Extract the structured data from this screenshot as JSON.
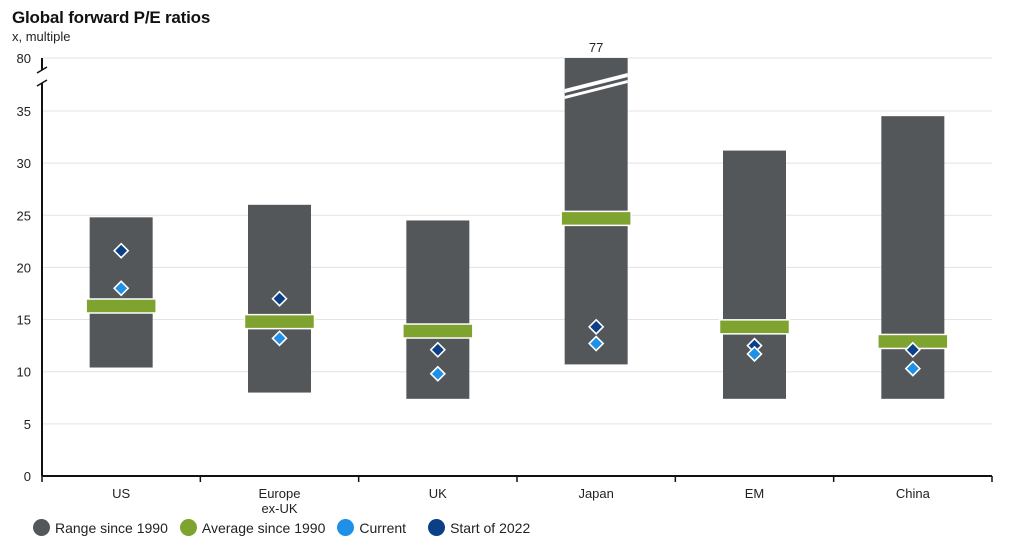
{
  "chart_data": {
    "type": "range-bar",
    "title": "Global forward P/E ratios",
    "subtitle": "x, multiple",
    "xlabel": "",
    "ylabel": "x, multiple",
    "ylim": [
      0,
      35
    ],
    "axis_break": {
      "from": 35,
      "to": 80,
      "top_tick": 80
    },
    "yticks": [
      0,
      5,
      10,
      15,
      20,
      25,
      30,
      35,
      80
    ],
    "grid": true,
    "legend_position": "bottom-left",
    "categories": [
      "US",
      "Europe\nex-UK",
      "UK",
      "Japan",
      "EM",
      "China"
    ],
    "category_labels": [
      [
        "US"
      ],
      [
        "Europe",
        "ex-UK"
      ],
      [
        "UK"
      ],
      [
        "Japan"
      ],
      [
        "EM"
      ],
      [
        "China"
      ]
    ],
    "series": [
      {
        "name": "Range since 1990",
        "color": "#54575a",
        "low": [
          10.4,
          8.0,
          7.4,
          10.7,
          7.4,
          7.4
        ],
        "high": [
          24.8,
          26.0,
          24.5,
          77,
          31.2,
          34.5
        ]
      },
      {
        "name": "Average since 1990",
        "color": "#7ea32e",
        "values": [
          16.3,
          14.8,
          13.9,
          24.7,
          14.3,
          12.9
        ]
      },
      {
        "name": "Current",
        "color": "#1e90e8",
        "values": [
          18.0,
          13.2,
          9.8,
          12.7,
          11.7,
          10.3
        ]
      },
      {
        "name": "Start of 2022",
        "color": "#0b3f86",
        "values": [
          21.6,
          17.0,
          12.1,
          14.3,
          12.5,
          12.1
        ]
      }
    ],
    "annotations": [
      {
        "category": "Japan",
        "text": "77"
      }
    ]
  }
}
